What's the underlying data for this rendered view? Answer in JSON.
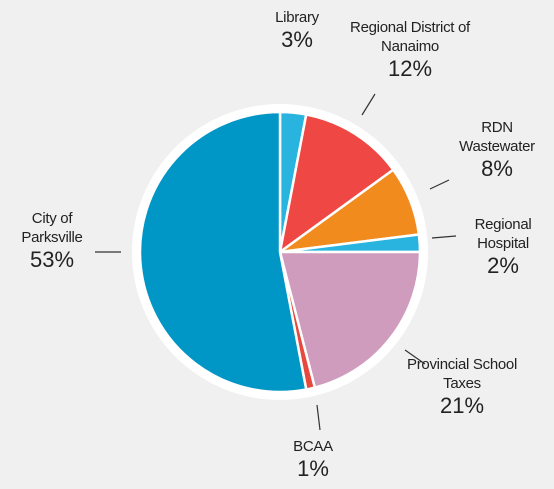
{
  "chart_data": {
    "type": "pie",
    "categories": [
      "Library",
      "Regional District of Nanaimo",
      "RDN Wastewater",
      "Regional Hospital",
      "Provincial School Taxes",
      "BCAA",
      "City of Parksville"
    ],
    "values": [
      3,
      12,
      8,
      2,
      21,
      1,
      53
    ],
    "value_labels": [
      "3%",
      "12%",
      "8%",
      "2%",
      "21%",
      "1%",
      "53%"
    ],
    "colors": [
      "#29b4e0",
      "#ee4744",
      "#f28b1e",
      "#29b4e0",
      "#cf9cbd",
      "#e8493f",
      "#0096c6"
    ]
  }
}
